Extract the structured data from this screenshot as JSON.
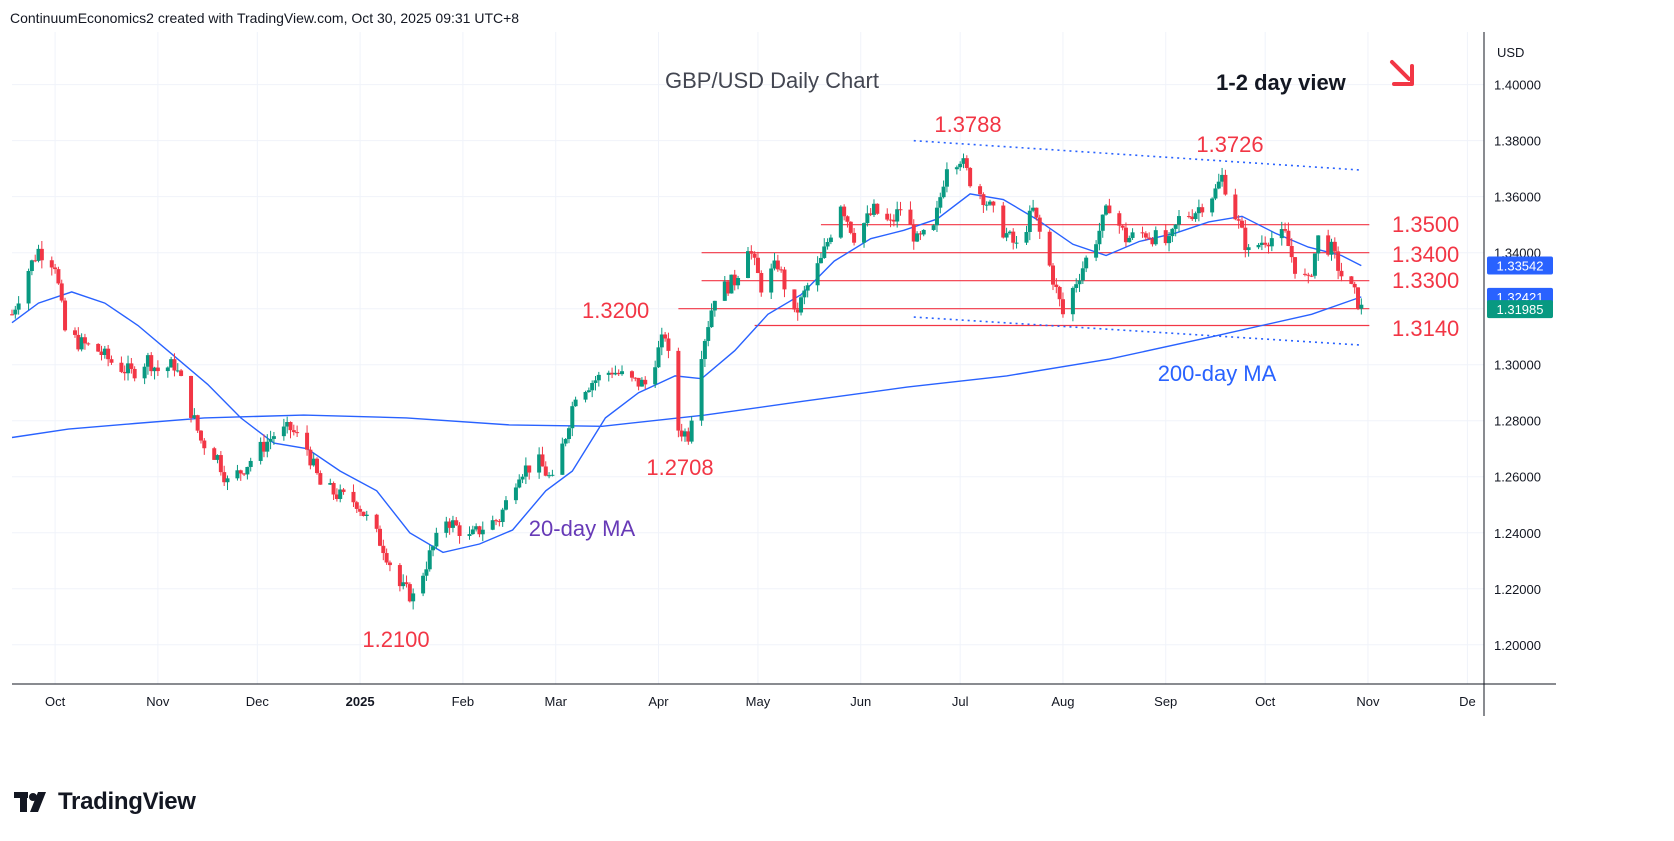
{
  "header": {
    "credit": "ContinuumEconomics2 created with TradingView.com, Oct 30, 2025 09:31 UTC+8"
  },
  "footer": {
    "brand": "TradingView",
    "logo_icon": "tradingview-logo-icon"
  },
  "chart_data": {
    "type": "candlestick",
    "title": "GBP/USD Daily Chart",
    "subtitle": "1-2 day view",
    "direction_icon": "down-right-arrow-icon",
    "currency": "USD",
    "ylim": [
      1.186,
      1.4188
    ],
    "yticks": [
      1.2,
      1.22,
      1.24,
      1.26,
      1.28,
      1.3,
      1.32,
      1.34,
      1.36,
      1.38,
      1.4
    ],
    "ytick_labels": [
      "1.20000",
      "1.22000",
      "1.24000",
      "1.26000",
      "1.28000",
      "1.30000",
      "1.32000",
      "1.34000",
      "1.36000",
      "1.38000",
      "1.40000"
    ],
    "xlim": [
      "2024-09-18",
      "2025-12-06"
    ],
    "xticks": [
      {
        "date": "2024-10-01",
        "label": "Oct",
        "bold": false
      },
      {
        "date": "2024-11-01",
        "label": "Nov",
        "bold": false
      },
      {
        "date": "2024-12-01",
        "label": "Dec",
        "bold": false
      },
      {
        "date": "2025-01-01",
        "label": "2025",
        "bold": true
      },
      {
        "date": "2025-02-01",
        "label": "Feb",
        "bold": false
      },
      {
        "date": "2025-03-01",
        "label": "Mar",
        "bold": false
      },
      {
        "date": "2025-04-01",
        "label": "Apr",
        "bold": false
      },
      {
        "date": "2025-05-01",
        "label": "May",
        "bold": false
      },
      {
        "date": "2025-06-01",
        "label": "Jun",
        "bold": false
      },
      {
        "date": "2025-07-01",
        "label": "Jul",
        "bold": false
      },
      {
        "date": "2025-08-01",
        "label": "Aug",
        "bold": false
      },
      {
        "date": "2025-09-01",
        "label": "Sep",
        "bold": false
      },
      {
        "date": "2025-10-01",
        "label": "Oct",
        "bold": false
      },
      {
        "date": "2025-11-01",
        "label": "Nov",
        "bold": false
      },
      {
        "date": "2025-12-01",
        "label": "De",
        "bold": false
      }
    ],
    "close_series": [
      [
        "2024-09-18",
        1.318
      ],
      [
        "2024-09-23",
        1.334
      ],
      [
        "2024-09-26",
        1.341
      ],
      [
        "2024-10-01",
        1.336
      ],
      [
        "2024-10-04",
        1.312
      ],
      [
        "2024-10-08",
        1.308
      ],
      [
        "2024-10-14",
        1.305
      ],
      [
        "2024-10-18",
        1.301
      ],
      [
        "2024-10-24",
        1.297
      ],
      [
        "2024-10-29",
        1.302
      ],
      [
        "2024-11-01",
        1.298
      ],
      [
        "2024-11-06",
        1.3
      ],
      [
        "2024-11-08",
        1.294
      ],
      [
        "2024-11-14",
        1.273
      ],
      [
        "2024-11-19",
        1.267
      ],
      [
        "2024-11-22",
        1.258
      ],
      [
        "2024-11-26",
        1.262
      ],
      [
        "2024-12-02",
        1.27
      ],
      [
        "2024-12-06",
        1.275
      ],
      [
        "2024-12-11",
        1.277
      ],
      [
        "2024-12-16",
        1.27
      ],
      [
        "2024-12-20",
        1.257
      ],
      [
        "2024-12-26",
        1.253
      ],
      [
        "2024-12-31",
        1.251
      ],
      [
        "2025-01-03",
        1.245
      ],
      [
        "2025-01-08",
        1.235
      ],
      [
        "2025-01-13",
        1.221
      ],
      [
        "2025-01-17",
        1.217
      ],
      [
        "2025-01-22",
        1.232
      ],
      [
        "2025-01-27",
        1.245
      ],
      [
        "2025-02-03",
        1.238
      ],
      [
        "2025-02-07",
        1.242
      ],
      [
        "2025-02-12",
        1.245
      ],
      [
        "2025-02-18",
        1.262
      ],
      [
        "2025-02-24",
        1.265
      ],
      [
        "2025-02-28",
        1.258
      ],
      [
        "2025-03-04",
        1.275
      ],
      [
        "2025-03-07",
        1.29
      ],
      [
        "2025-03-12",
        1.294
      ],
      [
        "2025-03-18",
        1.298
      ],
      [
        "2025-03-24",
        1.294
      ],
      [
        "2025-03-28",
        1.293
      ],
      [
        "2025-04-03",
        1.311
      ],
      [
        "2025-04-07",
        1.277
      ],
      [
        "2025-04-10",
        1.275
      ],
      [
        "2025-04-14",
        1.305
      ],
      [
        "2025-04-18",
        1.325
      ],
      [
        "2025-04-24",
        1.33
      ],
      [
        "2025-04-28",
        1.343
      ],
      [
        "2025-05-02",
        1.328
      ],
      [
        "2025-05-07",
        1.336
      ],
      [
        "2025-05-12",
        1.317
      ],
      [
        "2025-05-16",
        1.328
      ],
      [
        "2025-05-20",
        1.337
      ],
      [
        "2025-05-26",
        1.358
      ],
      [
        "2025-05-30",
        1.346
      ],
      [
        "2025-06-05",
        1.355
      ],
      [
        "2025-06-10",
        1.35
      ],
      [
        "2025-06-13",
        1.356
      ],
      [
        "2025-06-18",
        1.344
      ],
      [
        "2025-06-23",
        1.348
      ],
      [
        "2025-06-27",
        1.372
      ],
      [
        "2025-07-01",
        1.374
      ],
      [
        "2025-07-04",
        1.366
      ],
      [
        "2025-07-08",
        1.36
      ],
      [
        "2025-07-14",
        1.348
      ],
      [
        "2025-07-18",
        1.342
      ],
      [
        "2025-07-23",
        1.355
      ],
      [
        "2025-07-28",
        1.335
      ],
      [
        "2025-08-01",
        1.318
      ],
      [
        "2025-08-05",
        1.33
      ],
      [
        "2025-08-11",
        1.345
      ],
      [
        "2025-08-15",
        1.357
      ],
      [
        "2025-08-20",
        1.345
      ],
      [
        "2025-08-26",
        1.347
      ],
      [
        "2025-09-02",
        1.343
      ],
      [
        "2025-09-05",
        1.352
      ],
      [
        "2025-09-10",
        1.355
      ],
      [
        "2025-09-16",
        1.362
      ],
      [
        "2025-09-18",
        1.367
      ],
      [
        "2025-09-23",
        1.35
      ],
      [
        "2025-09-26",
        1.34
      ],
      [
        "2025-10-01",
        1.345
      ],
      [
        "2025-10-07",
        1.346
      ],
      [
        "2025-10-10",
        1.335
      ],
      [
        "2025-10-14",
        1.329
      ],
      [
        "2025-10-17",
        1.345
      ],
      [
        "2025-10-21",
        1.341
      ],
      [
        "2025-10-24",
        1.332
      ],
      [
        "2025-10-28",
        1.325
      ],
      [
        "2025-10-30",
        1.3198
      ]
    ],
    "ma20": [
      [
        "2024-09-18",
        1.315
      ],
      [
        "2024-09-26",
        1.322
      ],
      [
        "2024-10-06",
        1.326
      ],
      [
        "2024-10-16",
        1.322
      ],
      [
        "2024-10-26",
        1.314
      ],
      [
        "2024-11-06",
        1.303
      ],
      [
        "2024-11-16",
        1.293
      ],
      [
        "2024-11-26",
        1.281
      ],
      [
        "2024-12-06",
        1.272
      ],
      [
        "2024-12-16",
        1.27
      ],
      [
        "2024-12-26",
        1.262
      ],
      [
        "2025-01-06",
        1.255
      ],
      [
        "2025-01-16",
        1.24
      ],
      [
        "2025-01-26",
        1.233
      ],
      [
        "2025-02-06",
        1.236
      ],
      [
        "2025-02-16",
        1.241
      ],
      [
        "2025-02-26",
        1.255
      ],
      [
        "2025-03-06",
        1.262
      ],
      [
        "2025-03-16",
        1.281
      ],
      [
        "2025-03-26",
        1.29
      ],
      [
        "2025-04-06",
        1.296
      ],
      [
        "2025-04-14",
        1.295
      ],
      [
        "2025-04-24",
        1.305
      ],
      [
        "2025-05-04",
        1.318
      ],
      [
        "2025-05-14",
        1.325
      ],
      [
        "2025-05-24",
        1.337
      ],
      [
        "2025-06-04",
        1.345
      ],
      [
        "2025-06-14",
        1.348
      ],
      [
        "2025-06-24",
        1.352
      ],
      [
        "2025-07-04",
        1.361
      ],
      [
        "2025-07-14",
        1.359
      ],
      [
        "2025-07-24",
        1.352
      ],
      [
        "2025-08-04",
        1.343
      ],
      [
        "2025-08-14",
        1.339
      ],
      [
        "2025-08-24",
        1.344
      ],
      [
        "2025-09-04",
        1.347
      ],
      [
        "2025-09-14",
        1.351
      ],
      [
        "2025-09-24",
        1.353
      ],
      [
        "2025-10-04",
        1.347
      ],
      [
        "2025-10-14",
        1.342
      ],
      [
        "2025-10-24",
        1.339
      ],
      [
        "2025-10-30",
        1.3354
      ]
    ],
    "ma200": [
      [
        "2024-09-18",
        1.274
      ],
      [
        "2024-10-05",
        1.277
      ],
      [
        "2024-10-25",
        1.279
      ],
      [
        "2024-11-15",
        1.281
      ],
      [
        "2024-12-15",
        1.282
      ],
      [
        "2025-01-15",
        1.281
      ],
      [
        "2025-02-15",
        1.2785
      ],
      [
        "2025-03-15",
        1.278
      ],
      [
        "2025-04-15",
        1.282
      ],
      [
        "2025-05-15",
        1.287
      ],
      [
        "2025-06-15",
        1.292
      ],
      [
        "2025-07-15",
        1.296
      ],
      [
        "2025-08-15",
        1.302
      ],
      [
        "2025-09-15",
        1.31
      ],
      [
        "2025-10-15",
        1.318
      ],
      [
        "2025-10-30",
        1.3242
      ]
    ],
    "price_labels": [
      {
        "value": 1.33542,
        "text": "1.33542",
        "color": "#2962ff"
      },
      {
        "value": 1.32421,
        "text": "1.32421",
        "color": "#2962ff"
      },
      {
        "value": 1.31985,
        "text": "1.31985",
        "color": "#089981"
      }
    ],
    "horizontal_levels": [
      {
        "value": 1.35,
        "from": "2025-05-20",
        "to": "2025-10-30",
        "label": "1.3500"
      },
      {
        "value": 1.34,
        "from": "2025-04-14",
        "to": "2025-10-30",
        "label": "1.3400"
      },
      {
        "value": 1.33,
        "from": "2025-04-14",
        "to": "2025-10-30",
        "label": "1.3300"
      },
      {
        "value": 1.32,
        "from": "2025-04-07",
        "to": "2025-10-30",
        "label": "1.3200"
      },
      {
        "value": 1.314,
        "from": "2025-04-30",
        "to": "2025-10-30",
        "label": "1.3140"
      }
    ],
    "trendlines": [
      {
        "from": [
          "2025-06-17",
          1.38
        ],
        "to": [
          "2025-10-30",
          1.3695
        ],
        "style": "dotted"
      },
      {
        "from": [
          "2025-06-17",
          1.317
        ],
        "to": [
          "2025-10-30",
          1.307
        ],
        "style": "dotted"
      }
    ],
    "annotations": [
      {
        "text": "1.3788",
        "date": "2025-07-01",
        "value": 1.3788,
        "color": "#f23645"
      },
      {
        "text": "1.3726",
        "date": "2025-09-17",
        "value": 1.3726,
        "color": "#f23645"
      },
      {
        "text": "1.2708",
        "date": "2025-04-07",
        "value": 1.2708,
        "color": "#f23645"
      },
      {
        "text": "1.2100",
        "date": "2025-01-13",
        "value": 1.21,
        "color": "#f23645"
      },
      {
        "text": "20-day MA",
        "color": "#673ab7"
      },
      {
        "text": "200-day MA",
        "color": "#2962ff"
      }
    ]
  }
}
